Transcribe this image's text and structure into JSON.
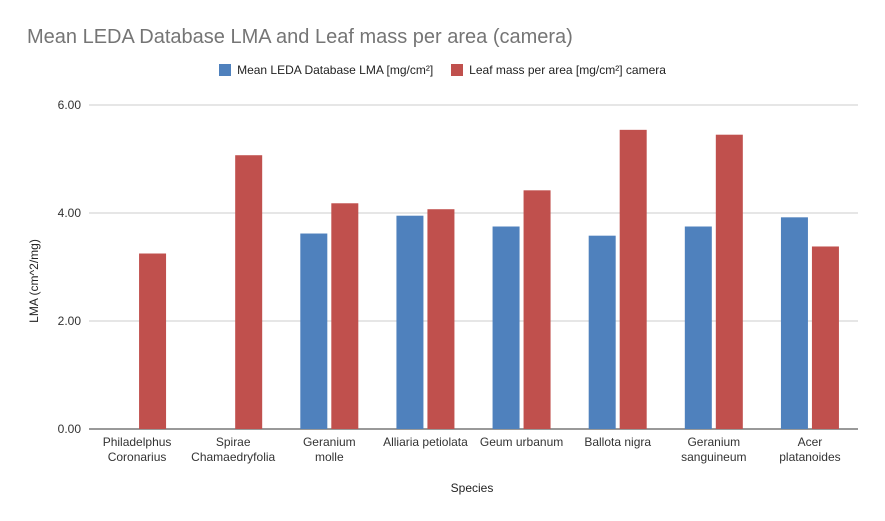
{
  "chart_data": {
    "type": "bar",
    "title": "Mean LEDA Database LMA and Leaf mass per area (camera)",
    "xlabel": "Species",
    "ylabel": "LMA (cm^2/mg)",
    "ylim": [
      0,
      6
    ],
    "yticks": [
      "0.00",
      "2.00",
      "4.00",
      "6.00"
    ],
    "grid": true,
    "legend_position": "top",
    "categories": [
      [
        "Philadelphus",
        "Coronarius"
      ],
      [
        "Spirae",
        "Chamaedryfolia"
      ],
      [
        "Geranium",
        "molle"
      ],
      [
        "Alliaria petiolata"
      ],
      [
        "Geum urbanum"
      ],
      [
        "Ballota nigra"
      ],
      [
        "Geranium",
        "sanguineum"
      ],
      [
        "Acer",
        "platanoides"
      ]
    ],
    "series": [
      {
        "name": "Mean LEDA Database LMA [mg/cm²]",
        "color": "#4f81bd",
        "values": [
          null,
          null,
          3.62,
          3.95,
          3.75,
          3.58,
          3.75,
          3.92
        ]
      },
      {
        "name": "Leaf mass per area [mg/cm²] camera",
        "color": "#c0504d",
        "values": [
          3.25,
          5.07,
          4.18,
          4.07,
          4.42,
          5.54,
          5.45,
          3.38
        ]
      }
    ]
  }
}
